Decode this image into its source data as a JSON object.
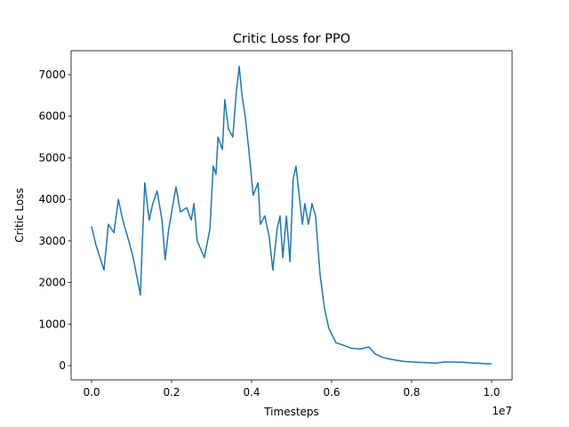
{
  "chart_data": {
    "type": "line",
    "title": "Critic Loss for PPO",
    "x_label": "Timesteps",
    "y_label": "Critic Loss",
    "x_offset_label": "1e7",
    "color": "#1f77b4",
    "x": [
      0,
      110000,
      310000,
      420000,
      560000,
      670000,
      780000,
      930000,
      1040000,
      1220000,
      1270000,
      1330000,
      1440000,
      1530000,
      1640000,
      1760000,
      1840000,
      1930000,
      2110000,
      2220000,
      2380000,
      2490000,
      2560000,
      2640000,
      2820000,
      2960000,
      3040000,
      3110000,
      3160000,
      3270000,
      3330000,
      3420000,
      3530000,
      3620000,
      3690000,
      3760000,
      3840000,
      3930000,
      4040000,
      4160000,
      4220000,
      4330000,
      4440000,
      4530000,
      4640000,
      4710000,
      4780000,
      4870000,
      4960000,
      5040000,
      5110000,
      5200000,
      5270000,
      5330000,
      5420000,
      5510000,
      5600000,
      5710000,
      5820000,
      5930000,
      6110000,
      6270000,
      6490000,
      6710000,
      6930000,
      7090000,
      7270000,
      7490000,
      7820000,
      8160000,
      8600000,
      8820000,
      9270000,
      9600000,
      10000000
    ],
    "values": [
      3350,
      2900,
      2300,
      3400,
      3200,
      4000,
      3500,
      3000,
      2600,
      1700,
      3000,
      4400,
      3500,
      3900,
      4200,
      3500,
      2550,
      3300,
      4300,
      3700,
      3800,
      3500,
      3900,
      3000,
      2600,
      3300,
      4800,
      4600,
      5500,
      5200,
      6400,
      5700,
      5500,
      6600,
      7200,
      6500,
      6000,
      5200,
      4100,
      4400,
      3400,
      3600,
      3100,
      2300,
      3300,
      3600,
      2600,
      3600,
      2500,
      4500,
      4800,
      4000,
      3400,
      3900,
      3400,
      3900,
      3600,
      2200,
      1400,
      900,
      550,
      500,
      420,
      400,
      450,
      280,
      200,
      150,
      100,
      80,
      60,
      90,
      80,
      60,
      40
    ],
    "xlim": [
      -511000,
      10511000
    ],
    "ylim": [
      -342,
      7578
    ],
    "xticks": [
      {
        "value": 0,
        "label": "0.0"
      },
      {
        "value": 2000000,
        "label": "0.2"
      },
      {
        "value": 4000000,
        "label": "0.4"
      },
      {
        "value": 6000000,
        "label": "0.6"
      },
      {
        "value": 8000000,
        "label": "0.8"
      },
      {
        "value": 10000000,
        "label": "1.0"
      }
    ],
    "yticks": [
      0,
      1000,
      2000,
      3000,
      4000,
      5000,
      6000,
      7000
    ],
    "grid": false
  }
}
